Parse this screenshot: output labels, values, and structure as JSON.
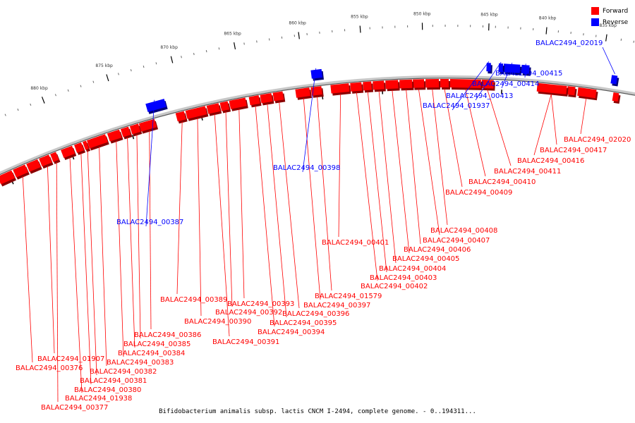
{
  "legend": {
    "forward_label": "Forward",
    "reverse_label": "Reverse",
    "forward_color": "#ff0000",
    "reverse_color": "#0000ff"
  },
  "caption": "Bifidobacterium animalis subsp. lactis CNCM I-2494, complete genome. - 0..194311...",
  "colors": {
    "backbone": "#c8c8c8",
    "forward": "#ff0000",
    "reverse": "#0000ff",
    "tick": "#000000"
  },
  "tick_labels": [
    "835 kbp",
    "840 kbp",
    "845 kbp",
    "850 kbp",
    "855 kbp",
    "860 kbp",
    "865 kbp",
    "870 kbp",
    "875 kbp",
    "880 kbp"
  ],
  "forward_genes": [
    "BALAC2494_02020",
    "BALAC2494_00417",
    "BALAC2494_00416",
    "BALAC2494_00411",
    "BALAC2494_00410",
    "BALAC2494_00409",
    "BALAC2494_00408",
    "BALAC2494_00407",
    "BALAC2494_00406",
    "BALAC2494_00405",
    "BALAC2494_00404",
    "BALAC2494_00403",
    "BALAC2494_00402",
    "BALAC2494_00401",
    "BALAC2494_01579",
    "BALAC2494_00397",
    "BALAC2494_00396",
    "BALAC2494_00395",
    "BALAC2494_00394",
    "BALAC2494_00393",
    "BALAC2494_00392",
    "BALAC2494_00391",
    "BALAC2494_00390",
    "BALAC2494_00389",
    "BALAC2494_00386",
    "BALAC2494_00385",
    "BALAC2494_00384",
    "BALAC2494_00383",
    "BALAC2494_00382",
    "BALAC2494_00381",
    "BALAC2494_00380",
    "BALAC2494_01938",
    "BALAC2494_00377",
    "BALAC2494_01907",
    "BALAC2494_00376"
  ],
  "reverse_genes": [
    "BALAC2494_02019",
    "BALAC2494_00415",
    "BALAC2494_00414",
    "BALAC2494_00413",
    "BALAC2494_01937",
    "BALAC2494_00398",
    "BALAC2494_00387"
  ]
}
